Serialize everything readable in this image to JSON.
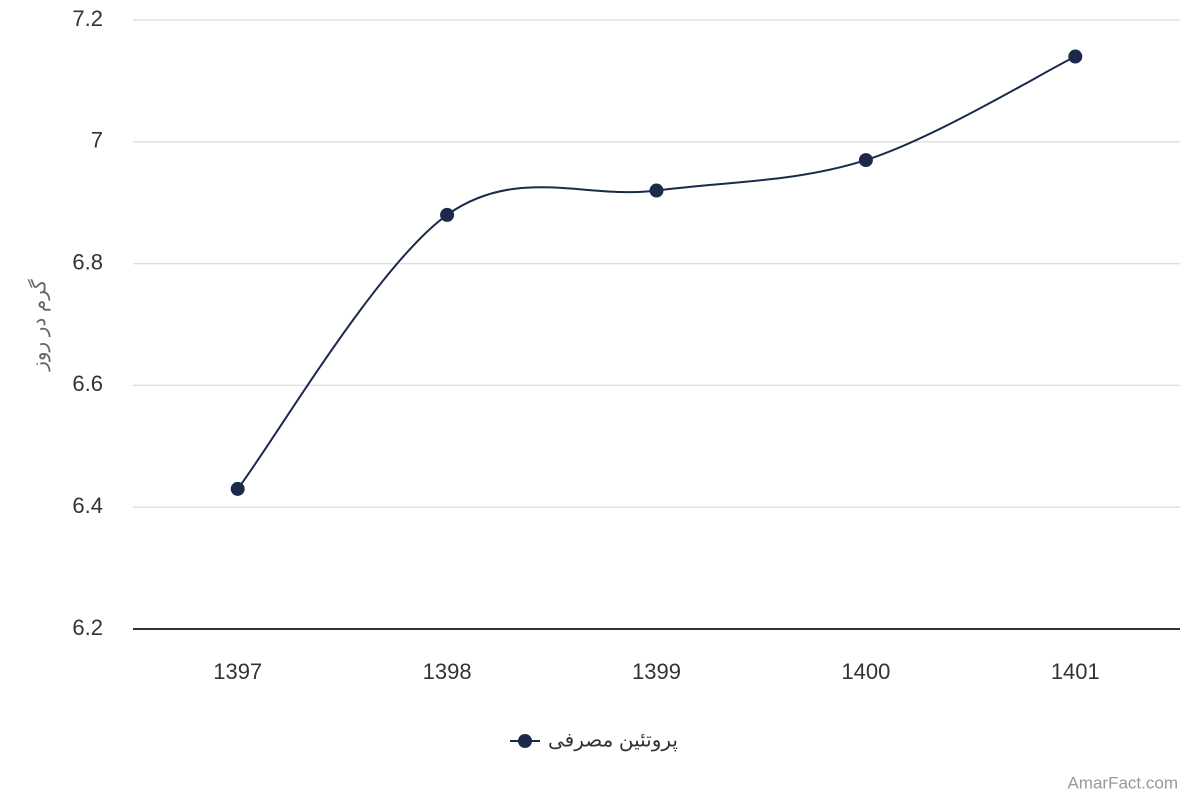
{
  "chart_data": {
    "type": "line",
    "categories": [
      "1397",
      "1398",
      "1399",
      "1400",
      "1401"
    ],
    "series": [
      {
        "name": "پروتئین مصرفی",
        "color": "#1b2a4a",
        "values": [
          6.43,
          6.88,
          6.92,
          6.97,
          7.14
        ]
      }
    ],
    "y_label": "گرم در روز",
    "ylim": [
      6.2,
      7.2
    ],
    "yticks": [
      6.2,
      6.4,
      6.6,
      6.8,
      7,
      7.2
    ],
    "grid": true,
    "credit": "AmarFact.com"
  }
}
